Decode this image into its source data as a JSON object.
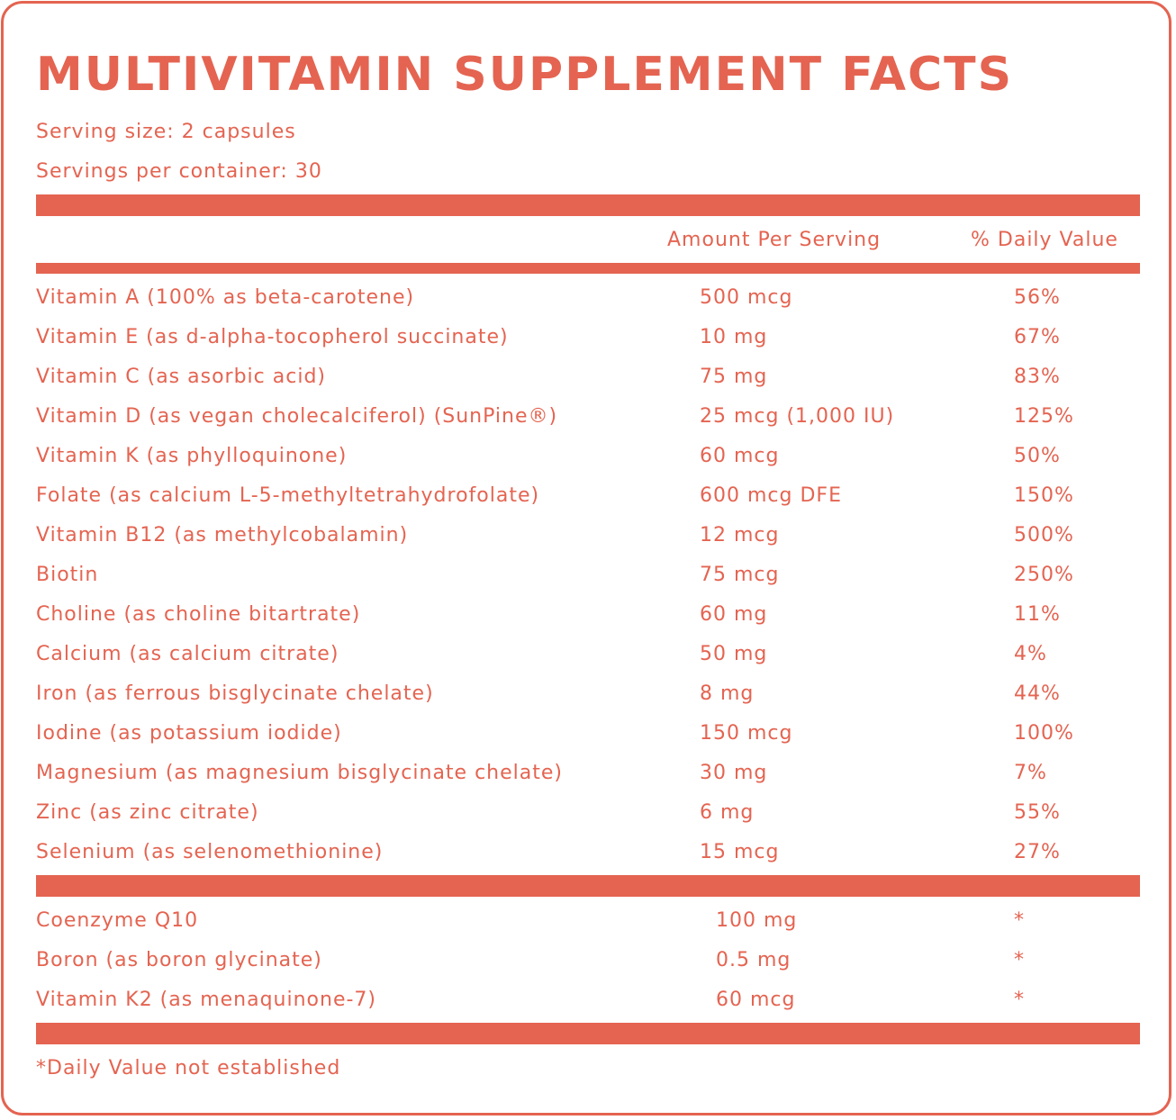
{
  "title": "MULTIVITAMIN SUPPLEMENT FACTS",
  "serving_size": "Serving size: 2 capsules",
  "servings_per_container": "Servings per container: 30",
  "headers": {
    "amount": "Amount Per Serving",
    "daily_value": "% Daily Value"
  },
  "nutrients": [
    {
      "name": "Vitamin A (100% as beta-carotene)",
      "amount": "500 mcg",
      "dv": "56%"
    },
    {
      "name": "Vitamin E (as d-alpha-tocopherol succinate)",
      "amount": "10 mg",
      "dv": "67%"
    },
    {
      "name": "Vitamin C (as asorbic acid)",
      "amount": "75 mg",
      "dv": "83%"
    },
    {
      "name": "Vitamin D (as vegan cholecalciferol) (SunPine®)",
      "amount": "25 mcg (1,000 IU)",
      "dv": "125%"
    },
    {
      "name": "Vitamin K (as phylloquinone)",
      "amount": "60 mcg",
      "dv": "50%"
    },
    {
      "name": "Folate (as calcium L-5-methyltetrahydrofolate)",
      "amount": "600 mcg DFE",
      "dv": "150%"
    },
    {
      "name": "Vitamin B12 (as methylcobalamin)",
      "amount": "12 mcg",
      "dv": "500%"
    },
    {
      "name": "Biotin",
      "amount": "75 mcg",
      "dv": "250%"
    },
    {
      "name": "Choline (as choline bitartrate)",
      "amount": "60 mg",
      "dv": "11%"
    },
    {
      "name": "Calcium (as calcium citrate)",
      "amount": "50 mg",
      "dv": "4%"
    },
    {
      "name": "Iron (as ferrous bisglycinate chelate)",
      "amount": "8 mg",
      "dv": "44%"
    },
    {
      "name": "Iodine (as potassium iodide)",
      "amount": "150 mcg",
      "dv": "100%"
    },
    {
      "name": "Magnesium (as magnesium bisglycinate chelate)",
      "amount": "30 mg",
      "dv": "7%"
    },
    {
      "name": "Zinc (as zinc citrate)",
      "amount": "6 mg",
      "dv": "55%"
    },
    {
      "name": "Selenium (as selenomethionine)",
      "amount": "15 mcg",
      "dv": "27%"
    }
  ],
  "other_ingredients": [
    {
      "name": "Coenzyme Q10",
      "amount": "100 mg",
      "dv": "*"
    },
    {
      "name": "Boron (as boron glycinate)",
      "amount": "0.5 mg",
      "dv": "*"
    },
    {
      "name": "Vitamin K2 (as menaquinone-7)",
      "amount": "60 mcg",
      "dv": "*"
    }
  ],
  "footnote": "*Daily Value not established",
  "colors": {
    "accent": "#e46451",
    "background": "#ffffff"
  }
}
